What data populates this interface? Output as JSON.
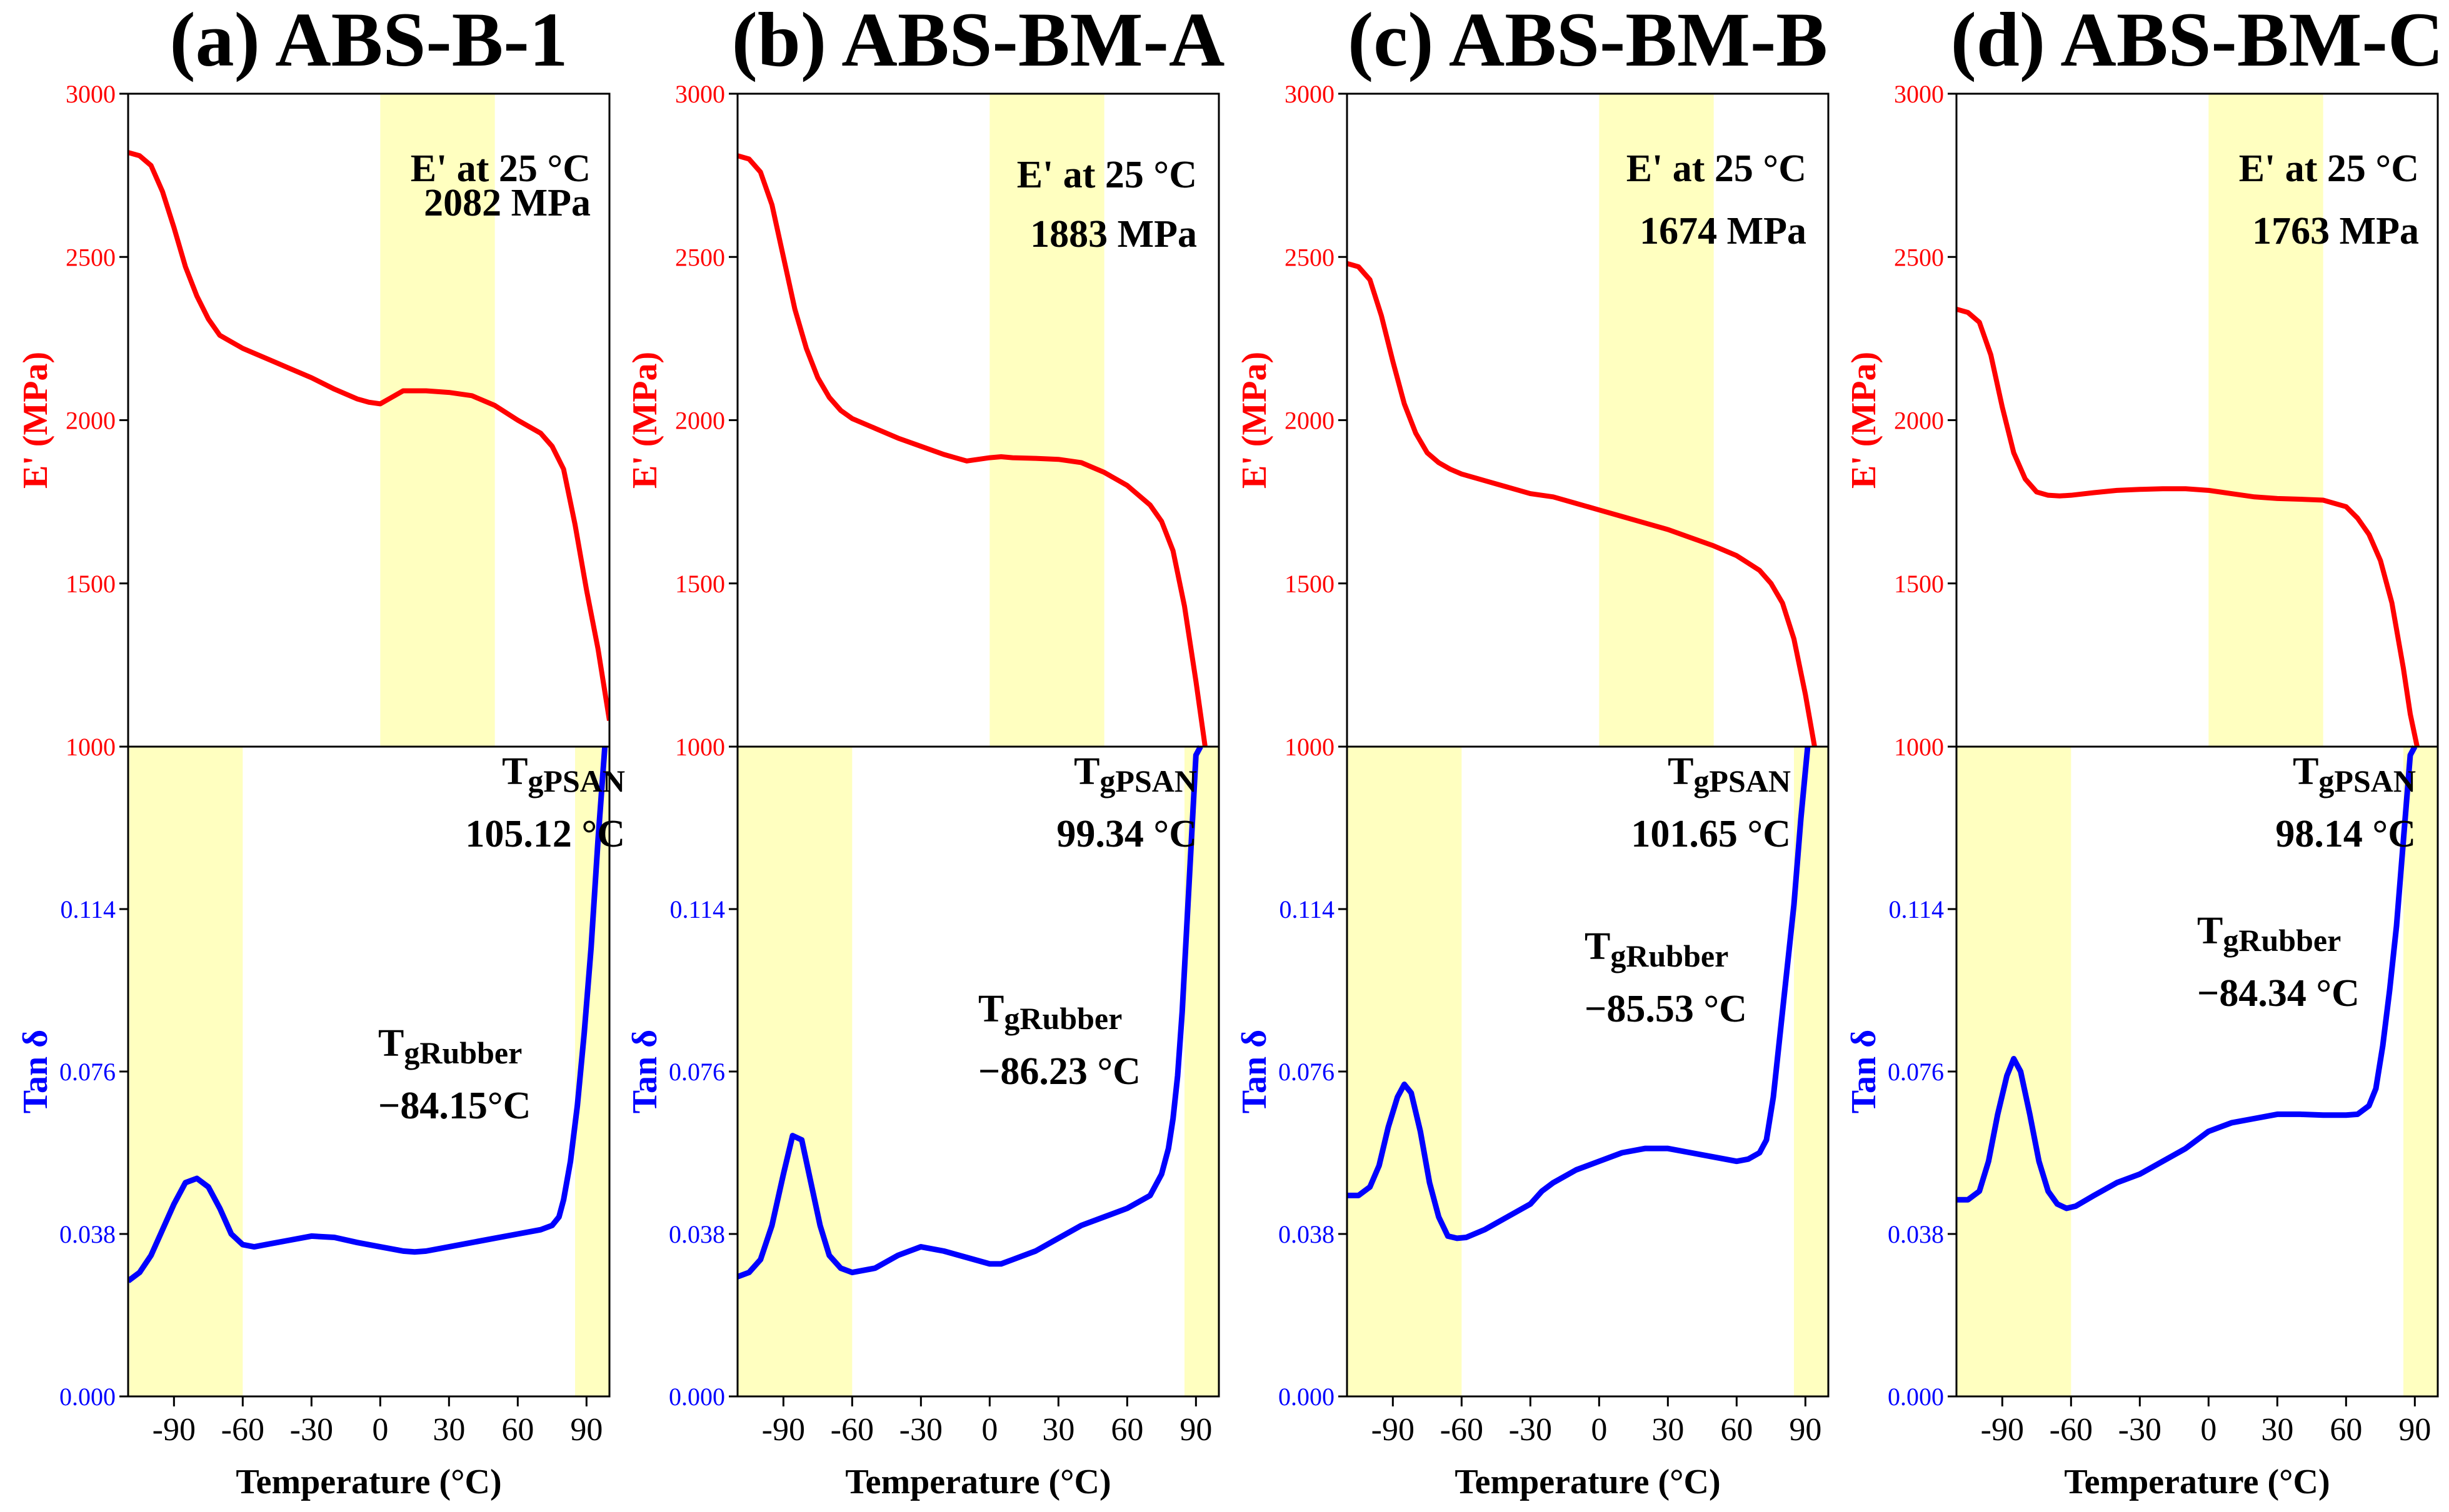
{
  "colors": {
    "modulus": "#ff0000",
    "tan_delta": "#0000ff",
    "highlight": "#ffffc0",
    "axis": "#000000"
  },
  "chart_data": [
    {
      "type": "line",
      "title": "(a) ABS-B-1",
      "xlabel": "Temperature (°C)",
      "xlim": [
        -110,
        100
      ],
      "xticks": [
        -90,
        -60,
        -30,
        0,
        30,
        60,
        90
      ],
      "xtick_labels": [
        "-90",
        "-60",
        "-30",
        "0",
        "30",
        "60",
        "90"
      ],
      "upper": {
        "ylabel": "E' (MPa)",
        "ylim": [
          1000,
          3000
        ],
        "yticks": [
          1000,
          1500,
          2000,
          2500,
          3000
        ],
        "ytick_labels": [
          "1000",
          "1500",
          "2000",
          "2500",
          "3000"
        ],
        "highlight_x": [
          0,
          50
        ],
        "annotation": [
          "E' at 25 °C",
          "2082 MPa"
        ],
        "series": [
          {
            "name": "E'",
            "x": [
              -110,
              -105,
              -100,
              -95,
              -90,
              -85,
              -80,
              -75,
              -70,
              -65,
              -60,
              -50,
              -40,
              -30,
              -20,
              -10,
              -5,
              0,
              5,
              10,
              20,
              30,
              40,
              50,
              60,
              70,
              75,
              80,
              85,
              90,
              95,
              100
            ],
            "y": [
              2820,
              2810,
              2780,
              2700,
              2590,
              2470,
              2380,
              2310,
              2260,
              2240,
              2220,
              2190,
              2160,
              2130,
              2095,
              2065,
              2055,
              2050,
              2070,
              2090,
              2090,
              2085,
              2075,
              2045,
              2000,
              1960,
              1920,
              1850,
              1680,
              1480,
              1300,
              1080
            ]
          }
        ]
      },
      "lower": {
        "ylabel": "Tan δ",
        "ylim": [
          0.0,
          0.152
        ],
        "yticks": [
          0.0,
          0.038,
          0.076,
          0.114
        ],
        "ytick_labels": [
          "0.000",
          "0.038",
          "0.076",
          "0.114"
        ],
        "highlight_x": [
          [
            -110,
            -60
          ],
          [
            85,
            100
          ]
        ],
        "annotations": [
          {
            "base": "T",
            "sub": "gRubber",
            "value": "−84.15°C"
          },
          {
            "base": "T",
            "sub": "gPSAN",
            "value": "105.12 °C"
          }
        ],
        "series": [
          {
            "name": "Tan δ",
            "x": [
              -110,
              -105,
              -100,
              -95,
              -90,
              -85,
              -80,
              -75,
              -70,
              -65,
              -60,
              -55,
              -50,
              -40,
              -30,
              -20,
              -10,
              0,
              10,
              15,
              20,
              30,
              40,
              50,
              60,
              70,
              75,
              78,
              80,
              83,
              86,
              89,
              92,
              95,
              98
            ],
            "y": [
              0.027,
              0.029,
              0.033,
              0.039,
              0.045,
              0.05,
              0.051,
              0.049,
              0.044,
              0.038,
              0.0355,
              0.035,
              0.0355,
              0.0365,
              0.0375,
              0.0372,
              0.036,
              0.035,
              0.034,
              0.0338,
              0.034,
              0.035,
              0.036,
              0.037,
              0.038,
              0.039,
              0.04,
              0.042,
              0.046,
              0.055,
              0.068,
              0.085,
              0.105,
              0.13,
              0.152
            ]
          }
        ]
      }
    },
    {
      "type": "line",
      "title": "(b) ABS-BM-A",
      "xlabel": "Temperature (°C)",
      "xlim": [
        -110,
        100
      ],
      "xticks": [
        -90,
        -60,
        -30,
        0,
        30,
        60,
        90
      ],
      "xtick_labels": [
        "-90",
        "-60",
        "-30",
        "0",
        "30",
        "60",
        "90"
      ],
      "upper": {
        "ylabel": "E' (MPa)",
        "ylim": [
          1000,
          3000
        ],
        "yticks": [
          1000,
          1500,
          2000,
          2500,
          3000
        ],
        "ytick_labels": [
          "1000",
          "1500",
          "2000",
          "2500",
          "3000"
        ],
        "highlight_x": [
          0,
          50
        ],
        "annotation": [
          "E' at 25 °C",
          "1883  MPa"
        ],
        "series": [
          {
            "name": "E'",
            "x": [
              -110,
              -105,
              -100,
              -95,
              -90,
              -85,
              -80,
              -75,
              -70,
              -65,
              -60,
              -50,
              -40,
              -30,
              -20,
              -10,
              -5,
              0,
              5,
              10,
              20,
              30,
              40,
              50,
              60,
              70,
              75,
              80,
              85,
              90,
              94
            ],
            "y": [
              2810,
              2800,
              2760,
              2660,
              2500,
              2340,
              2220,
              2130,
              2070,
              2030,
              2005,
              1975,
              1945,
              1920,
              1895,
              1875,
              1880,
              1885,
              1888,
              1885,
              1883,
              1880,
              1870,
              1840,
              1800,
              1740,
              1690,
              1600,
              1430,
              1200,
              1000
            ]
          }
        ]
      },
      "lower": {
        "ylabel": "Tan δ",
        "ylim": [
          0.0,
          0.152
        ],
        "yticks": [
          0.0,
          0.038,
          0.076,
          0.114
        ],
        "ytick_labels": [
          "0.000",
          "0.038",
          "0.076",
          "0.114"
        ],
        "highlight_x": [
          [
            -110,
            -60
          ],
          [
            85,
            100
          ]
        ],
        "annotations": [
          {
            "base": "T",
            "sub": "gRubber",
            "value": "−86.23 °C"
          },
          {
            "base": "T",
            "sub": "gPSAN",
            "value": "99.34 °C"
          }
        ],
        "series": [
          {
            "name": "Tan δ",
            "x": [
              -110,
              -105,
              -100,
              -95,
              -90,
              -86,
              -82,
              -78,
              -74,
              -70,
              -65,
              -60,
              -50,
              -40,
              -30,
              -20,
              -10,
              0,
              5,
              10,
              20,
              30,
              40,
              50,
              60,
              70,
              75,
              78,
              80,
              82,
              84,
              86,
              88,
              90,
              92
            ],
            "y": [
              0.028,
              0.029,
              0.032,
              0.04,
              0.052,
              0.061,
              0.06,
              0.05,
              0.04,
              0.033,
              0.03,
              0.029,
              0.03,
              0.033,
              0.035,
              0.034,
              0.0325,
              0.031,
              0.031,
              0.032,
              0.034,
              0.037,
              0.04,
              0.042,
              0.044,
              0.047,
              0.052,
              0.058,
              0.065,
              0.075,
              0.09,
              0.11,
              0.13,
              0.15,
              0.152
            ]
          }
        ]
      }
    },
    {
      "type": "line",
      "title": "(c) ABS-BM-B",
      "xlabel": "Temperature (°C)",
      "xlim": [
        -110,
        100
      ],
      "xticks": [
        -90,
        -60,
        -30,
        0,
        30,
        60,
        90
      ],
      "xtick_labels": [
        "-90",
        "-60",
        "-30",
        "0",
        "30",
        "60",
        "90"
      ],
      "upper": {
        "ylabel": "E' (MPa)",
        "ylim": [
          1000,
          3000
        ],
        "yticks": [
          1000,
          1500,
          2000,
          2500,
          3000
        ],
        "ytick_labels": [
          "1000",
          "1500",
          "2000",
          "2500",
          "3000"
        ],
        "highlight_x": [
          0,
          50
        ],
        "annotation": [
          "E' at 25 °C",
          "1674 MPa"
        ],
        "series": [
          {
            "name": "E'",
            "x": [
              -110,
              -105,
              -100,
              -95,
              -90,
              -85,
              -80,
              -75,
              -70,
              -65,
              -60,
              -50,
              -40,
              -30,
              -20,
              -10,
              0,
              10,
              20,
              30,
              40,
              50,
              60,
              70,
              75,
              80,
              85,
              90,
              94
            ],
            "y": [
              2480,
              2470,
              2430,
              2320,
              2180,
              2050,
              1960,
              1900,
              1870,
              1850,
              1835,
              1815,
              1795,
              1775,
              1765,
              1745,
              1725,
              1705,
              1685,
              1665,
              1640,
              1615,
              1585,
              1540,
              1500,
              1440,
              1330,
              1160,
              1000
            ]
          }
        ]
      },
      "lower": {
        "ylabel": "Tan δ",
        "ylim": [
          0.0,
          0.152
        ],
        "yticks": [
          0.0,
          0.038,
          0.076,
          0.114
        ],
        "ytick_labels": [
          "0.000",
          "0.038",
          "0.076",
          "0.114"
        ],
        "highlight_x": [
          [
            -110,
            -60
          ],
          [
            85,
            100
          ]
        ],
        "annotations": [
          {
            "base": "T",
            "sub": "gRubber",
            "value": "−85.53 °C"
          },
          {
            "base": "T",
            "sub": "gPSAN",
            "value": "101.65 °C"
          }
        ],
        "series": [
          {
            "name": "Tan δ",
            "x": [
              -110,
              -105,
              -100,
              -96,
              -92,
              -88,
              -85,
              -82,
              -78,
              -74,
              -70,
              -66,
              -62,
              -58,
              -50,
              -40,
              -30,
              -25,
              -20,
              -10,
              0,
              10,
              20,
              30,
              40,
              50,
              60,
              65,
              70,
              73,
              76,
              79,
              82,
              85,
              88,
              91
            ],
            "y": [
              0.047,
              0.047,
              0.049,
              0.054,
              0.063,
              0.07,
              0.073,
              0.071,
              0.062,
              0.05,
              0.042,
              0.0375,
              0.037,
              0.0372,
              0.039,
              0.042,
              0.045,
              0.048,
              0.05,
              0.053,
              0.055,
              0.057,
              0.058,
              0.058,
              0.057,
              0.056,
              0.055,
              0.0555,
              0.057,
              0.06,
              0.07,
              0.085,
              0.1,
              0.115,
              0.135,
              0.152
            ]
          }
        ]
      }
    },
    {
      "type": "line",
      "title": "(d) ABS-BM-C",
      "xlabel": "Temperature (°C)",
      "xlim": [
        -110,
        100
      ],
      "xticks": [
        -90,
        -60,
        -30,
        0,
        30,
        60,
        90
      ],
      "xtick_labels": [
        "-90",
        "-60",
        "-30",
        "0",
        "30",
        "60",
        "90"
      ],
      "upper": {
        "ylabel": "E' (MPa)",
        "ylim": [
          1000,
          3000
        ],
        "yticks": [
          1000,
          1500,
          2000,
          2500,
          3000
        ],
        "ytick_labels": [
          "1000",
          "1500",
          "2000",
          "2500",
          "3000"
        ],
        "highlight_x": [
          0,
          50
        ],
        "annotation": [
          "E' at 25 °C",
          "1763 MPa"
        ],
        "series": [
          {
            "name": "E'",
            "x": [
              -110,
              -105,
              -100,
              -95,
              -90,
              -85,
              -80,
              -75,
              -70,
              -65,
              -60,
              -50,
              -40,
              -30,
              -20,
              -10,
              0,
              10,
              20,
              30,
              40,
              50,
              60,
              65,
              70,
              75,
              80,
              85,
              88,
              91
            ],
            "y": [
              2340,
              2330,
              2300,
              2200,
              2040,
              1900,
              1820,
              1780,
              1770,
              1768,
              1770,
              1778,
              1785,
              1788,
              1790,
              1790,
              1785,
              1775,
              1765,
              1760,
              1758,
              1755,
              1735,
              1700,
              1650,
              1570,
              1440,
              1240,
              1100,
              1000
            ]
          }
        ]
      },
      "lower": {
        "ylabel": "Tan δ",
        "ylim": [
          0.0,
          0.152
        ],
        "yticks": [
          0.0,
          0.038,
          0.076,
          0.114
        ],
        "ytick_labels": [
          "0.000",
          "0.038",
          "0.076",
          "0.114"
        ],
        "highlight_x": [
          [
            -110,
            -60
          ],
          [
            85,
            100
          ]
        ],
        "annotations": [
          {
            "base": "T",
            "sub": "gRubber",
            "value": "−84.34 °C"
          },
          {
            "base": "T",
            "sub": "gPSAN",
            "value": "98.14 °C"
          }
        ],
        "series": [
          {
            "name": "Tan δ",
            "x": [
              -110,
              -105,
              -100,
              -96,
              -92,
              -88,
              -85,
              -82,
              -78,
              -74,
              -70,
              -66,
              -62,
              -58,
              -50,
              -40,
              -30,
              -20,
              -10,
              0,
              10,
              20,
              30,
              40,
              50,
              60,
              65,
              70,
              73,
              76,
              79,
              82,
              85,
              88,
              90
            ],
            "y": [
              0.046,
              0.046,
              0.048,
              0.055,
              0.066,
              0.075,
              0.079,
              0.076,
              0.066,
              0.055,
              0.048,
              0.045,
              0.044,
              0.0445,
              0.047,
              0.05,
              0.052,
              0.055,
              0.058,
              0.062,
              0.064,
              0.065,
              0.066,
              0.066,
              0.0658,
              0.0658,
              0.066,
              0.068,
              0.072,
              0.082,
              0.095,
              0.11,
              0.13,
              0.15,
              0.152
            ]
          }
        ]
      }
    }
  ]
}
